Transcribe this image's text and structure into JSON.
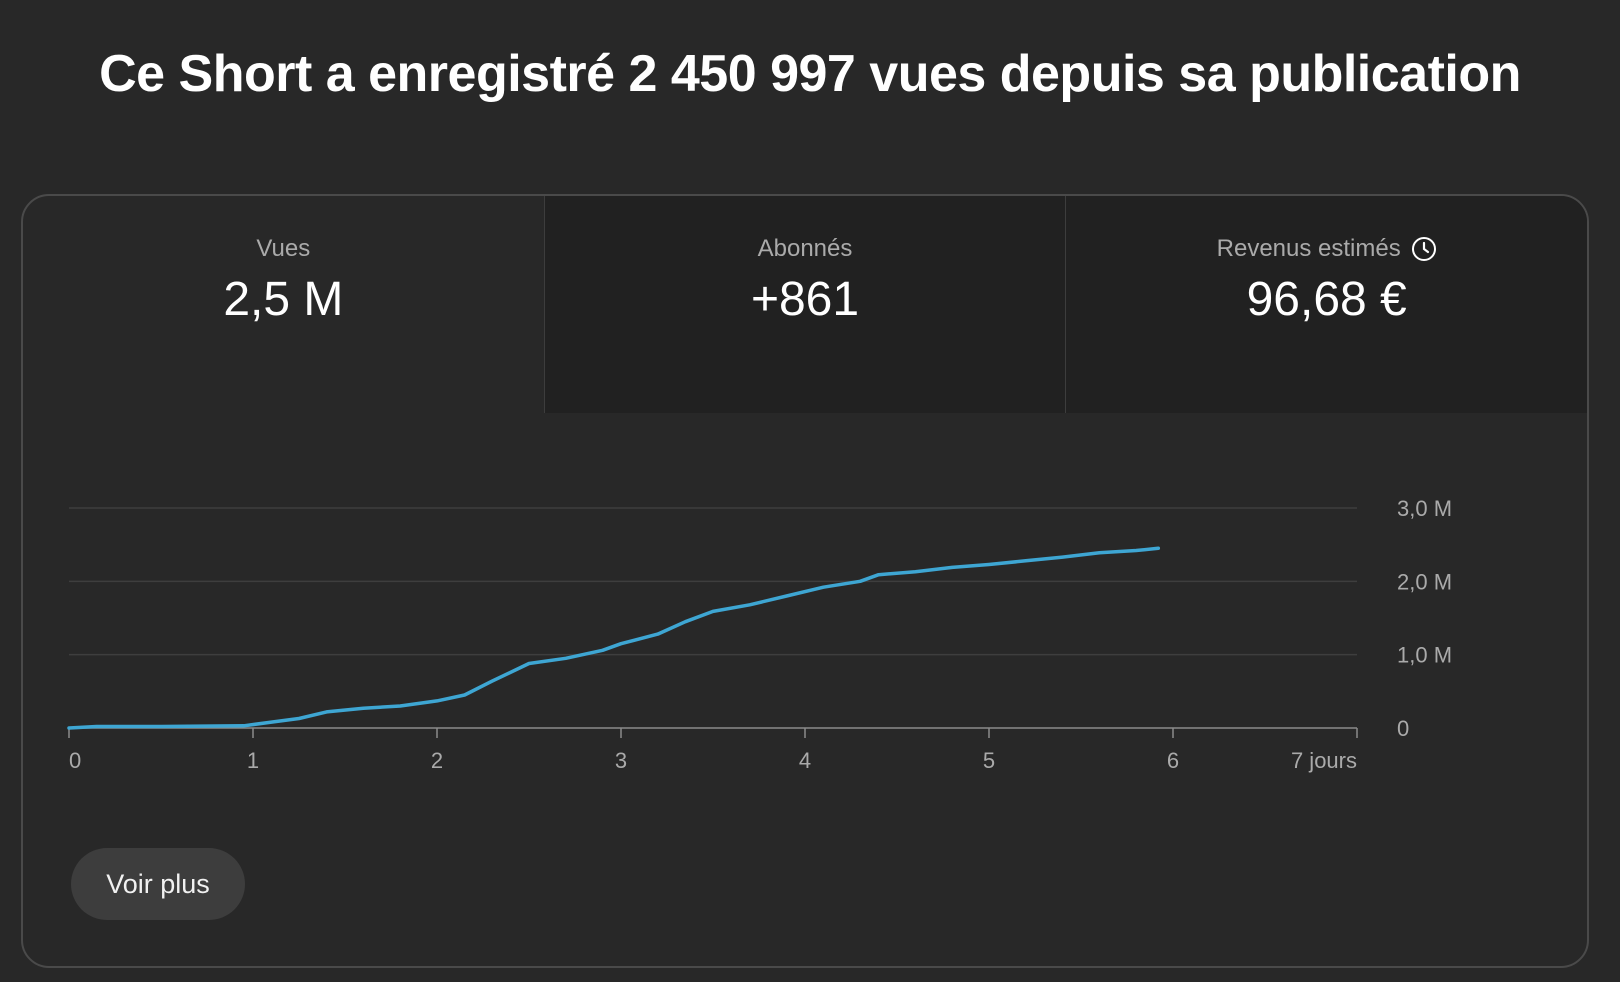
{
  "headline": "Ce Short a enregistré 2 450 997 vues depuis sa publication",
  "tabs": [
    {
      "label": "Vues",
      "value": "2,5 M"
    },
    {
      "label": "Abonnés",
      "value": "+861"
    },
    {
      "label": "Revenus estimés",
      "value": "96,68 €",
      "icon": "clock-icon"
    }
  ],
  "more_button": "Voir plus",
  "colors": {
    "line": "#3ea6d3",
    "grid": "#3e3e3e",
    "axis": "#8a8a8a",
    "tick_text": "#aaaaaa"
  },
  "chart_data": {
    "type": "line",
    "x_tick_labels": [
      "0",
      "1",
      "2",
      "3",
      "4",
      "5",
      "6",
      "7 jours"
    ],
    "x_ticks": [
      0,
      1,
      2,
      3,
      4,
      5,
      6,
      7
    ],
    "xlim": [
      0,
      7
    ],
    "y_tick_labels": [
      "0",
      "1,0 M",
      "2,0 M",
      "3,0 M"
    ],
    "y_ticks": [
      0,
      1000000,
      2000000,
      3000000
    ],
    "ylim": [
      0,
      3000000
    ],
    "grid": true,
    "series": [
      {
        "x": [
          0,
          0.15,
          0.5,
          0.95,
          1.1,
          1.25,
          1.4,
          1.6,
          1.8,
          2.0,
          2.15,
          2.3,
          2.5,
          2.7,
          2.9,
          3.0,
          3.2,
          3.35,
          3.5,
          3.7,
          3.9,
          4.1,
          4.3,
          4.4,
          4.6,
          4.8,
          5.0,
          5.2,
          5.4,
          5.6,
          5.8,
          5.92
        ],
        "values": [
          0,
          20000,
          20000,
          30000,
          80000,
          130000,
          220000,
          270000,
          300000,
          370000,
          450000,
          640000,
          880000,
          950000,
          1060000,
          1150000,
          1280000,
          1450000,
          1590000,
          1680000,
          1800000,
          1920000,
          2000000,
          2090000,
          2130000,
          2190000,
          2230000,
          2280000,
          2330000,
          2390000,
          2420000,
          2450997
        ]
      }
    ]
  }
}
